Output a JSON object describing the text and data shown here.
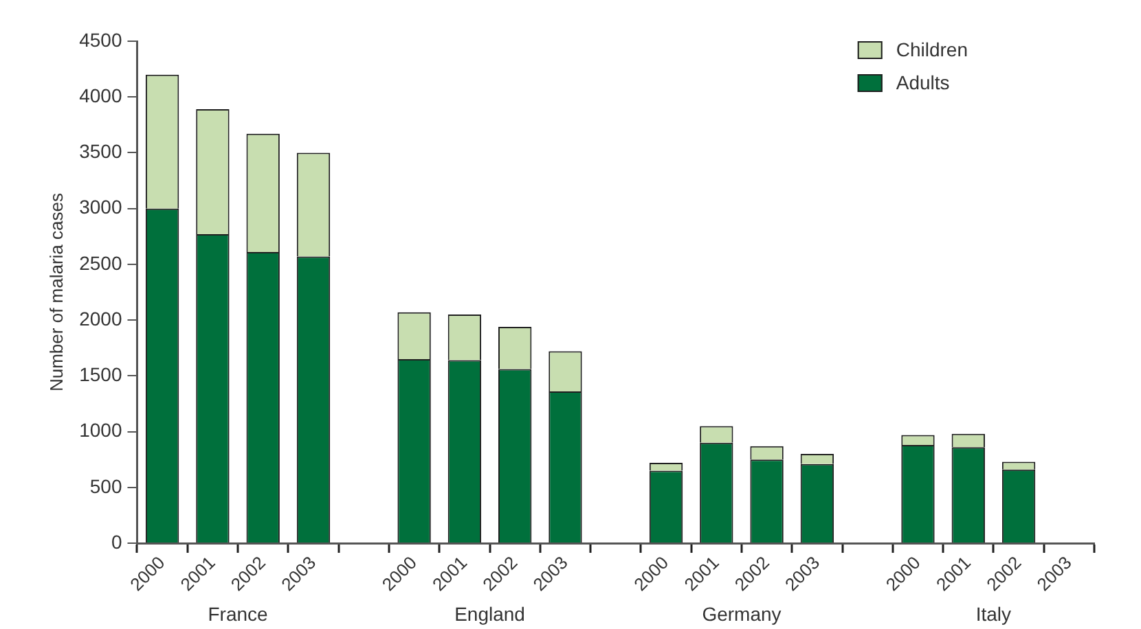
{
  "chart_data": {
    "type": "bar",
    "stacked": true,
    "ylabel": "Number of malaria cases",
    "categories": [
      "2000",
      "2001",
      "2002",
      "2003",
      null,
      "2000",
      "2001",
      "2002",
      "2003",
      null,
      "2000",
      "2001",
      "2002",
      "2003",
      null,
      "2000",
      "2001",
      "2002",
      "2003"
    ],
    "series": [
      {
        "name": "Adults",
        "color": "#00703c",
        "values": [
          3000,
          2770,
          2610,
          2570,
          null,
          1650,
          1640,
          1560,
          1360,
          null,
          650,
          900,
          750,
          710,
          null,
          880,
          860,
          660,
          null
        ]
      },
      {
        "name": "Children",
        "color": "#c8deb0",
        "values": [
          1200,
          1120,
          1060,
          930,
          null,
          420,
          410,
          380,
          360,
          null,
          70,
          150,
          120,
          90,
          null,
          90,
          120,
          70,
          null
        ]
      }
    ],
    "ylim": [
      0,
      4500
    ],
    "yticks": [
      0,
      500,
      1000,
      1500,
      2000,
      2500,
      3000,
      3500,
      4000,
      4500
    ],
    "grid": false,
    "legend": "top right",
    "annotations": [
      "France",
      "England",
      "Germany",
      "Italy"
    ]
  }
}
